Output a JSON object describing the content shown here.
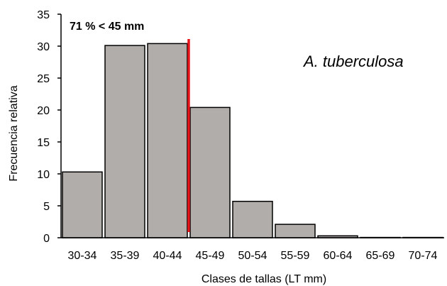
{
  "chart_data": {
    "type": "bar",
    "categories": [
      "30-34",
      "35-39",
      "40-44",
      "45-49",
      "50-54",
      "55-59",
      "60-64",
      "65-69",
      "70-74"
    ],
    "values": [
      10.3,
      30.1,
      30.4,
      20.4,
      5.7,
      2.1,
      0.3,
      0.05,
      0.05
    ],
    "xlabel": "Clases de tallas (LT mm)",
    "ylabel": "Frecuencia relativa",
    "ylim": [
      0,
      35
    ],
    "yticks": [
      0,
      5,
      10,
      15,
      20,
      25,
      30,
      35
    ],
    "grid": false,
    "bar_color": "#b1adab",
    "threshold": {
      "x": 44.5,
      "color": "#e8141b",
      "label": "71 % < 45 mm"
    },
    "species_label": "A.   tuberculosa"
  }
}
